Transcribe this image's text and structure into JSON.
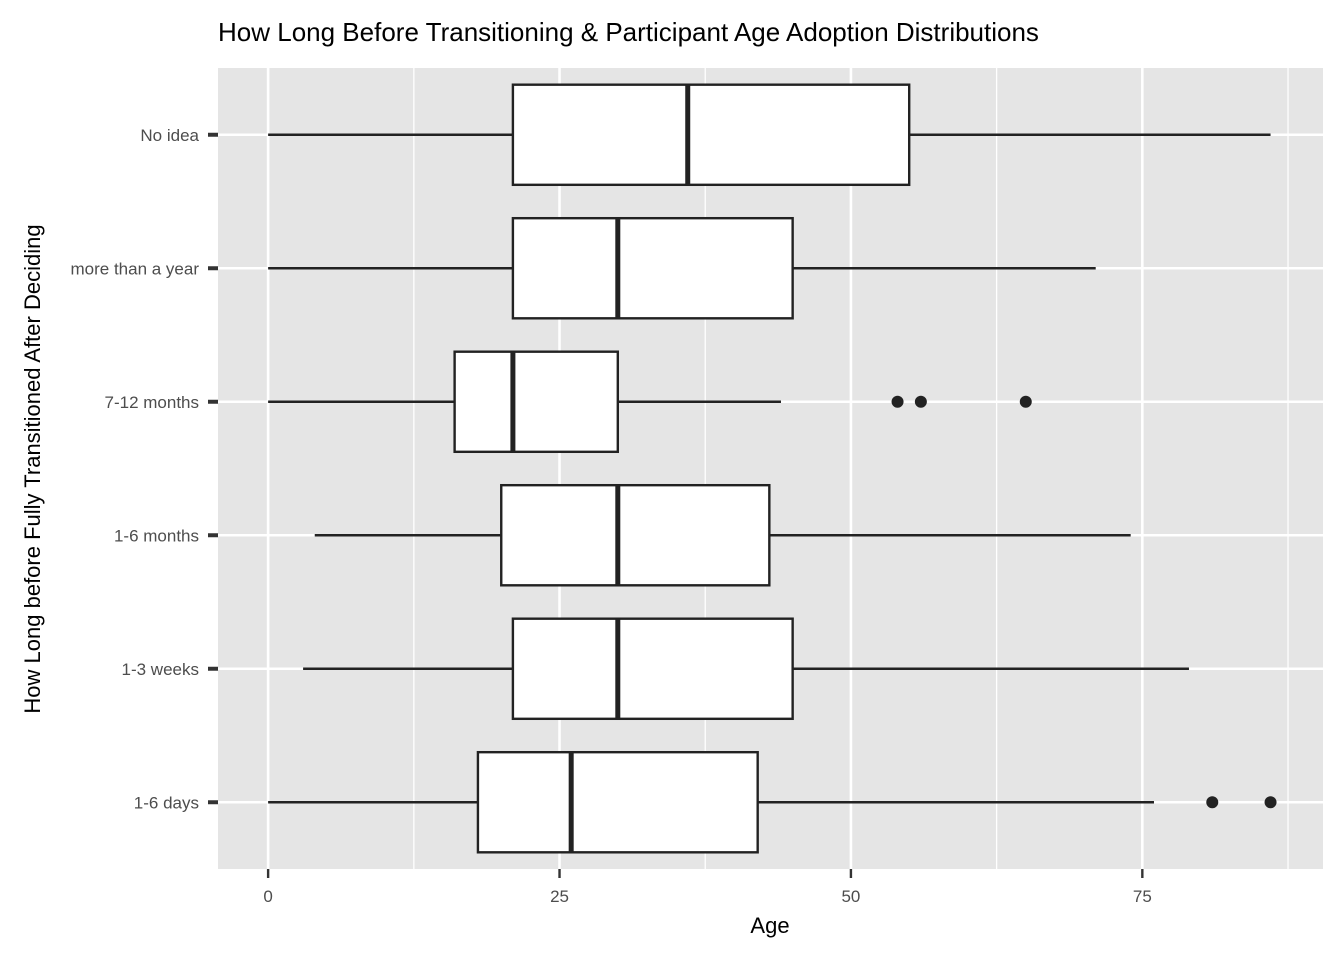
{
  "chart_data": {
    "type": "boxplot",
    "orientation": "horizontal",
    "title": "How Long Before Transitioning & Participant Age Adoption Distributions",
    "xlabel": "Age",
    "ylabel": "How Long before Fully Transitioned After Deciding",
    "xlim": [
      -4.3,
      90.5
    ],
    "x_ticks": [
      0,
      25,
      50,
      75
    ],
    "x_tick_labels": [
      "0",
      "25",
      "50",
      "75"
    ],
    "grid": true,
    "categories": [
      "1-6 days",
      "1-3 weeks",
      "1-6 months",
      "7-12 months",
      "more than a year",
      "No idea"
    ],
    "boxes": [
      {
        "category": "1-6 days",
        "whisker_low": 0,
        "q1": 18,
        "median": 26,
        "q3": 42,
        "whisker_high": 76,
        "outliers": [
          81,
          86
        ]
      },
      {
        "category": "1-3 weeks",
        "whisker_low": 3,
        "q1": 21,
        "median": 30,
        "q3": 45,
        "whisker_high": 79,
        "outliers": []
      },
      {
        "category": "1-6 months",
        "whisker_low": 4,
        "q1": 20,
        "median": 30,
        "q3": 43,
        "whisker_high": 74,
        "outliers": []
      },
      {
        "category": "7-12 months",
        "whisker_low": 0,
        "q1": 16,
        "median": 21,
        "q3": 30,
        "whisker_high": 44,
        "outliers": [
          54,
          56,
          65
        ]
      },
      {
        "category": "more than a year",
        "whisker_low": 0,
        "q1": 21,
        "median": 30,
        "q3": 45,
        "whisker_high": 71,
        "outliers": []
      },
      {
        "category": "No idea",
        "whisker_low": 0,
        "q1": 21,
        "median": 36,
        "q3": 55,
        "whisker_high": 86,
        "outliers": []
      }
    ],
    "colors": {
      "panel_background": "#e5e5e5",
      "grid_line": "#ffffff",
      "box_fill": "#ffffff",
      "box_stroke": "#222222",
      "tick_label": "#4d4d4d"
    }
  }
}
